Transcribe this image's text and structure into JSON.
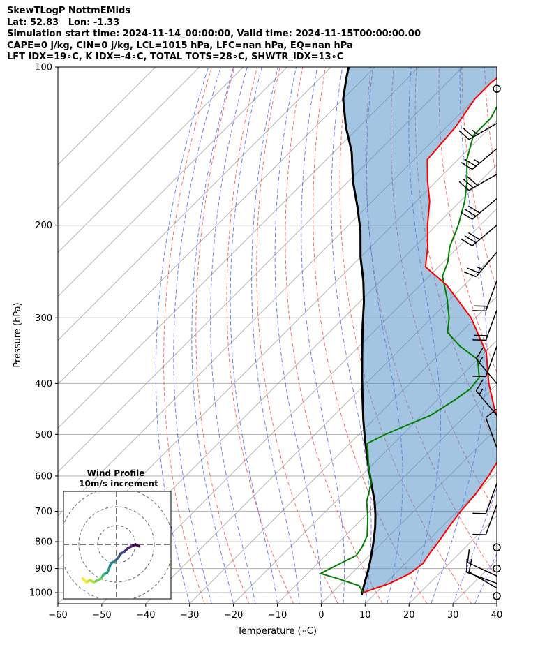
{
  "header": {
    "line1": "SkewTLogP NottmEMids",
    "line2": "Lat: 52.83   Lon: -1.33",
    "line3": "Simulation start time: 2024-11-14_00:00:00, Valid time: 2024-11-15T00:00:00.00",
    "line4": "CAPE=0 j/kg, CIN=0 j/kg, LCL=1015 hPa, LFC=nan hPa, EQ=nan hPa",
    "line5": "LFT IDX=19∘C, K IDX=-4∘C, TOTAL TOTS=28∘C, SHWTR_IDX=13∘C"
  },
  "chart_data": {
    "type": "skewt",
    "xlabel": "Temperature (∘C)",
    "ylabel": "Pressure (hPa)",
    "xlim": [
      -60,
      40
    ],
    "ylim": [
      1050,
      100
    ],
    "y_scale": "log",
    "grid": true,
    "x_ticks": [
      -60,
      -50,
      -40,
      -30,
      -20,
      -10,
      0,
      10,
      20,
      30,
      40
    ],
    "x_tick_labels": [
      "−60",
      "−50",
      "−40",
      "−30",
      "−20",
      "−10",
      "0",
      "10",
      "20",
      "30",
      "40"
    ],
    "y_ticks": [
      100,
      200,
      300,
      400,
      500,
      600,
      700,
      800,
      900,
      1000
    ],
    "y_tick_labels": [
      "100",
      "200",
      "300",
      "400",
      "500",
      "600",
      "700",
      "800",
      "900",
      "1000"
    ],
    "series": [
      {
        "color": "#ff0000",
        "points": [
          [
            7,
            1000
          ],
          [
            11,
            960
          ],
          [
            13.3,
            920
          ],
          [
            14,
            880
          ],
          [
            13.2,
            840
          ],
          [
            12.6,
            800
          ],
          [
            11.6,
            750
          ],
          [
            10.7,
            700
          ],
          [
            10.2,
            650
          ],
          [
            9,
            600
          ],
          [
            7.3,
            550
          ],
          [
            3,
            500
          ],
          [
            -4.5,
            450
          ],
          [
            -12,
            400
          ],
          [
            -19.5,
            350
          ],
          [
            -31,
            300
          ],
          [
            -44,
            260
          ],
          [
            -53,
            240
          ],
          [
            -57,
            220
          ],
          [
            -62,
            200
          ],
          [
            -67,
            180
          ],
          [
            -72,
            165
          ],
          [
            -77,
            150
          ],
          [
            -78,
            130
          ],
          [
            -80,
            115
          ],
          [
            -80,
            107
          ],
          [
            -79,
            100
          ]
        ]
      },
      {
        "color": "#008000",
        "points": [
          [
            7,
            1000
          ],
          [
            4.5,
            970
          ],
          [
            -2,
            940
          ],
          [
            -7,
            920
          ],
          [
            -6,
            900
          ],
          [
            -3,
            850
          ],
          [
            -3.6,
            820
          ],
          [
            -5,
            780
          ],
          [
            -9,
            720
          ],
          [
            -13,
            670
          ],
          [
            -16,
            620
          ],
          [
            -21,
            570
          ],
          [
            -26,
            520
          ],
          [
            -24,
            500
          ],
          [
            -18,
            460
          ],
          [
            -16,
            430
          ],
          [
            -15,
            410
          ],
          [
            -15.5,
            390
          ],
          [
            -20,
            360
          ],
          [
            -27,
            340
          ],
          [
            -33,
            320
          ],
          [
            -36,
            300
          ],
          [
            -41,
            275
          ],
          [
            -47,
            250
          ],
          [
            -49,
            235
          ],
          [
            -52,
            220
          ],
          [
            -55,
            200
          ],
          [
            -59,
            180
          ],
          [
            -63,
            165
          ],
          [
            -68,
            150
          ],
          [
            -72,
            135
          ],
          [
            -72,
            125
          ],
          [
            -74,
            115
          ],
          [
            -77,
            105
          ],
          [
            -80,
            100
          ]
        ]
      },
      {
        "color": "#000000",
        "name": "parcel",
        "points": [
          [
            7.2,
            1010
          ],
          [
            6,
            980
          ],
          [
            4.8,
            950
          ],
          [
            3.2,
            910
          ],
          [
            1.4,
            870
          ],
          [
            -0.6,
            830
          ],
          [
            -2.8,
            790
          ],
          [
            -5.2,
            750
          ],
          [
            -8,
            710
          ],
          [
            -11.2,
            670
          ],
          [
            -15,
            630
          ],
          [
            -19,
            590
          ],
          [
            -23.2,
            550
          ],
          [
            -27.6,
            510
          ],
          [
            -32.2,
            470
          ],
          [
            -37,
            430
          ],
          [
            -42.2,
            390
          ],
          [
            -47.8,
            350
          ],
          [
            -54,
            310
          ],
          [
            -59,
            280
          ],
          [
            -64,
            255
          ],
          [
            -70,
            230
          ],
          [
            -76,
            205
          ],
          [
            -82,
            185
          ],
          [
            -89,
            165
          ],
          [
            -96,
            145
          ],
          [
            -103,
            130
          ],
          [
            -110,
            115
          ],
          [
            -114,
            105
          ],
          [
            -116,
            100
          ]
        ]
      }
    ],
    "shaded_region": "between temperature and parcel profiles",
    "wind_barbs": [
      {
        "p": 1015,
        "spd": 0,
        "dir": 0
      },
      {
        "p": 980,
        "spd": 10,
        "dir": 300
      },
      {
        "p": 960,
        "spd": 10,
        "dir": 290
      },
      {
        "p": 930,
        "spd": 10,
        "dir": 295
      },
      {
        "p": 900,
        "spd": 0,
        "dir": 0
      },
      {
        "p": 820,
        "spd": 0,
        "dir": 0
      },
      {
        "p": 680,
        "spd": 10,
        "dir": 200
      },
      {
        "p": 620,
        "spd": 10,
        "dir": 200
      },
      {
        "p": 530,
        "spd": 10,
        "dir": 340
      },
      {
        "p": 460,
        "spd": 15,
        "dir": 320
      },
      {
        "p": 400,
        "spd": 15,
        "dir": 320
      },
      {
        "p": 340,
        "spd": 10,
        "dir": 200
      },
      {
        "p": 290,
        "spd": 20,
        "dir": 200
      },
      {
        "p": 255,
        "spd": 20,
        "dir": 200
      },
      {
        "p": 225,
        "spd": 25,
        "dir": 220
      },
      {
        "p": 200,
        "spd": 30,
        "dir": 230
      },
      {
        "p": 178,
        "spd": 30,
        "dir": 230
      },
      {
        "p": 160,
        "spd": 30,
        "dir": 240
      },
      {
        "p": 143,
        "spd": 25,
        "dir": 230
      },
      {
        "p": 128,
        "spd": 25,
        "dir": 240
      },
      {
        "p": 110,
        "spd": 0,
        "dir": 0
      }
    ],
    "hodograph": {
      "title": "Wind Profile",
      "subtitle": "10m/s increment",
      "rings": [
        10,
        20,
        30
      ],
      "points": [
        [
          12,
          -1
        ],
        [
          10,
          0
        ],
        [
          8,
          -1
        ],
        [
          6,
          -2
        ],
        [
          4,
          -4
        ],
        [
          2,
          -5
        ],
        [
          1,
          -7
        ],
        [
          -1,
          -9
        ],
        [
          -3,
          -10
        ],
        [
          -4,
          -13
        ],
        [
          -5,
          -15
        ],
        [
          -7,
          -16
        ],
        [
          -8,
          -18
        ],
        [
          -10,
          -19
        ],
        [
          -12,
          -20
        ],
        [
          -14,
          -19
        ],
        [
          -16,
          -20
        ],
        [
          -18,
          -18
        ]
      ]
    }
  }
}
